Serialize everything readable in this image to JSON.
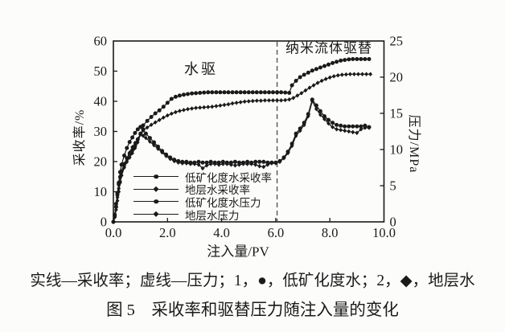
{
  "figure": {
    "note": "实线—采收率；虚线—压力；1，●，低矿化度水；2，◆，地层水",
    "title": "图 5　采收率和驱替压力随注入量的变化"
  },
  "chart_data": {
    "type": "line",
    "xlabel": "注入量/PV",
    "ylabel_left": "采收率/%",
    "ylabel_right": "压力/MPa",
    "xlim": [
      0,
      10
    ],
    "ylim_left": [
      0,
      60
    ],
    "ylim_right": [
      0,
      25
    ],
    "x_ticks": [
      "0.0",
      "2.0",
      "4.0",
      "6.0",
      "8.0",
      "10.0"
    ],
    "x_tick_values": [
      0,
      2,
      4,
      6,
      8,
      10
    ],
    "y_ticks_left": [
      0,
      10,
      20,
      30,
      40,
      50,
      60
    ],
    "y_ticks_right": [
      0,
      5,
      10,
      15,
      20,
      25
    ],
    "grid": false,
    "divider_x": 6.05,
    "colors": {
      "ink": "#1a1a1a",
      "divider": "#4a4a4a",
      "background": "#fcfcfb"
    },
    "annotations": [
      {
        "text": "水驱",
        "region": "water-flooding-stage"
      },
      {
        "text": "纳米流体驱替",
        "region": "nanofluid-displacement-stage"
      }
    ],
    "legend": [
      {
        "label": "低矿化度水采收率",
        "marker": "circle"
      },
      {
        "label": "地层水采收率",
        "marker": "diamond"
      },
      {
        "label": "低矿化度水压力",
        "marker": "circle"
      },
      {
        "label": "地层水压力",
        "marker": "diamond"
      }
    ],
    "series": [
      {
        "name": "低矿化度水采收率",
        "axis": "left",
        "unit": "%",
        "marker": "circle",
        "points": [
          [
            0,
            0
          ],
          [
            0.05,
            2
          ],
          [
            0.1,
            5
          ],
          [
            0.15,
            9
          ],
          [
            0.2,
            13
          ],
          [
            0.25,
            16.5
          ],
          [
            0.3,
            19
          ],
          [
            0.4,
            22
          ],
          [
            0.5,
            24.5
          ],
          [
            0.6,
            26.5
          ],
          [
            0.7,
            28
          ],
          [
            0.8,
            29.5
          ],
          [
            0.9,
            30.7
          ],
          [
            1.0,
            31.5
          ],
          [
            1.1,
            32
          ],
          [
            1.25,
            33.5
          ],
          [
            1.4,
            34.8
          ],
          [
            1.55,
            36
          ],
          [
            1.7,
            37
          ],
          [
            1.85,
            38.2
          ],
          [
            2.0,
            39.5
          ],
          [
            2.15,
            40.8
          ],
          [
            2.3,
            41.5
          ],
          [
            2.45,
            41.9
          ],
          [
            2.6,
            42.2
          ],
          [
            2.75,
            42.4
          ],
          [
            2.9,
            42.6
          ],
          [
            3.05,
            42.7
          ],
          [
            3.2,
            42.8
          ],
          [
            3.35,
            42.9
          ],
          [
            3.5,
            43
          ],
          [
            3.65,
            43
          ],
          [
            3.8,
            43
          ],
          [
            3.95,
            43
          ],
          [
            4.1,
            43
          ],
          [
            4.25,
            43
          ],
          [
            4.4,
            43
          ],
          [
            4.55,
            43
          ],
          [
            4.7,
            43
          ],
          [
            4.85,
            43
          ],
          [
            5.0,
            43
          ],
          [
            5.15,
            43
          ],
          [
            5.3,
            43
          ],
          [
            5.45,
            43
          ],
          [
            5.6,
            43
          ],
          [
            5.75,
            43
          ],
          [
            5.9,
            43
          ],
          [
            6.05,
            43
          ],
          [
            6.2,
            43
          ],
          [
            6.35,
            42.9
          ],
          [
            6.5,
            42.8
          ],
          [
            6.6,
            45.3
          ],
          [
            6.75,
            46.8
          ],
          [
            6.9,
            48
          ],
          [
            7.05,
            48.8
          ],
          [
            7.2,
            49.5
          ],
          [
            7.35,
            50.2
          ],
          [
            7.5,
            50.7
          ],
          [
            7.65,
            51.2
          ],
          [
            7.8,
            51.7
          ],
          [
            7.95,
            52.2
          ],
          [
            8.1,
            52.7
          ],
          [
            8.25,
            53.1
          ],
          [
            8.4,
            53.5
          ],
          [
            8.55,
            53.7
          ],
          [
            8.7,
            53.9
          ],
          [
            8.85,
            54
          ],
          [
            9.0,
            54
          ],
          [
            9.15,
            54
          ],
          [
            9.3,
            54
          ],
          [
            9.45,
            54
          ]
        ]
      },
      {
        "name": "地层水采收率",
        "axis": "left",
        "unit": "%",
        "marker": "diamond",
        "points": [
          [
            0,
            0
          ],
          [
            0.05,
            1.5
          ],
          [
            0.1,
            4
          ],
          [
            0.15,
            7
          ],
          [
            0.2,
            10
          ],
          [
            0.25,
            13
          ],
          [
            0.3,
            15.5
          ],
          [
            0.4,
            18.5
          ],
          [
            0.5,
            21
          ],
          [
            0.6,
            23
          ],
          [
            0.7,
            24.8
          ],
          [
            0.8,
            26.2
          ],
          [
            0.9,
            27.5
          ],
          [
            1.0,
            29
          ],
          [
            1.1,
            30.3
          ],
          [
            1.25,
            31.3
          ],
          [
            1.4,
            32.2
          ],
          [
            1.55,
            33
          ],
          [
            1.7,
            33.8
          ],
          [
            1.85,
            34.6
          ],
          [
            2.0,
            35.3
          ],
          [
            2.15,
            35.9
          ],
          [
            2.3,
            36.4
          ],
          [
            2.45,
            36.8
          ],
          [
            2.6,
            37.1
          ],
          [
            2.75,
            37.4
          ],
          [
            2.9,
            37.6
          ],
          [
            3.05,
            37.8
          ],
          [
            3.2,
            37.9
          ],
          [
            3.35,
            38
          ],
          [
            3.5,
            38.1
          ],
          [
            3.65,
            38.2
          ],
          [
            3.8,
            38.4
          ],
          [
            3.95,
            38.6
          ],
          [
            4.1,
            38.8
          ],
          [
            4.25,
            39
          ],
          [
            4.4,
            39.3
          ],
          [
            4.55,
            39.5
          ],
          [
            4.7,
            39.7
          ],
          [
            4.85,
            39.9
          ],
          [
            5.0,
            40
          ],
          [
            5.15,
            40.1
          ],
          [
            5.3,
            40.2
          ],
          [
            5.45,
            40.2
          ],
          [
            5.6,
            40.3
          ],
          [
            5.75,
            40.3
          ],
          [
            5.9,
            40.3
          ],
          [
            6.05,
            40.3
          ],
          [
            6.2,
            40.3
          ],
          [
            6.35,
            40.4
          ],
          [
            6.5,
            40.6
          ],
          [
            6.65,
            41.1
          ],
          [
            6.8,
            41.9
          ],
          [
            6.95,
            42.7
          ],
          [
            7.1,
            43.6
          ],
          [
            7.25,
            44.5
          ],
          [
            7.4,
            45.3
          ],
          [
            7.55,
            46.1
          ],
          [
            7.7,
            46.8
          ],
          [
            7.85,
            47.4
          ],
          [
            8.0,
            47.9
          ],
          [
            8.15,
            48.3
          ],
          [
            8.3,
            48.6
          ],
          [
            8.45,
            48.8
          ],
          [
            8.6,
            48.9
          ],
          [
            8.75,
            49
          ],
          [
            8.9,
            49
          ],
          [
            9.05,
            49
          ],
          [
            9.2,
            49
          ],
          [
            9.35,
            49
          ],
          [
            9.5,
            49
          ]
        ]
      },
      {
        "name": "低矿化度水压力",
        "axis": "right",
        "unit": "MPa",
        "marker": "circle",
        "points": [
          [
            0,
            0
          ],
          [
            0.05,
            1
          ],
          [
            0.1,
            2.5
          ],
          [
            0.15,
            4
          ],
          [
            0.2,
            5.2
          ],
          [
            0.25,
            6.2
          ],
          [
            0.3,
            7
          ],
          [
            0.4,
            8
          ],
          [
            0.5,
            8.8
          ],
          [
            0.6,
            9.4
          ],
          [
            0.7,
            9.9
          ],
          [
            0.8,
            10.5
          ],
          [
            0.9,
            11.4
          ],
          [
            1.0,
            12.2
          ],
          [
            1.1,
            12.8
          ],
          [
            1.2,
            12.2
          ],
          [
            1.35,
            11.6
          ],
          [
            1.5,
            11
          ],
          [
            1.65,
            10.4
          ],
          [
            1.8,
            9.8
          ],
          [
            1.95,
            9.3
          ],
          [
            2.1,
            8.9
          ],
          [
            2.25,
            8.6
          ],
          [
            2.4,
            8.4
          ],
          [
            2.55,
            8.3
          ],
          [
            2.7,
            8.3
          ],
          [
            2.85,
            8.2
          ],
          [
            3.0,
            8.2
          ],
          [
            3.15,
            8.3
          ],
          [
            3.3,
            8.2
          ],
          [
            3.45,
            8.2
          ],
          [
            3.6,
            8.3
          ],
          [
            3.75,
            8.2
          ],
          [
            3.9,
            8.2
          ],
          [
            4.05,
            8.3
          ],
          [
            4.2,
            8.2
          ],
          [
            4.35,
            8.2
          ],
          [
            4.5,
            8.3
          ],
          [
            4.65,
            8.2
          ],
          [
            4.8,
            8.2
          ],
          [
            4.95,
            8.3
          ],
          [
            5.1,
            8.2
          ],
          [
            5.25,
            8.3
          ],
          [
            5.4,
            8.3
          ],
          [
            5.55,
            8.3
          ],
          [
            5.7,
            8.2
          ],
          [
            5.85,
            8.2
          ],
          [
            6.0,
            8.2
          ],
          [
            6.15,
            8.4
          ],
          [
            6.3,
            8.9
          ],
          [
            6.45,
            9.7
          ],
          [
            6.6,
            10.8
          ],
          [
            6.75,
            12.2
          ],
          [
            6.9,
            12.9
          ],
          [
            7.05,
            13.7
          ],
          [
            7.2,
            14.9
          ],
          [
            7.35,
            16.9
          ],
          [
            7.5,
            16.1
          ],
          [
            7.65,
            15.3
          ],
          [
            7.8,
            14.6
          ],
          [
            7.95,
            14.1
          ],
          [
            8.1,
            13.7
          ],
          [
            8.25,
            13.4
          ],
          [
            8.4,
            13.3
          ],
          [
            8.55,
            13.2
          ],
          [
            8.7,
            13.2
          ],
          [
            8.85,
            13.2
          ],
          [
            9.0,
            13.2
          ],
          [
            9.15,
            13.2
          ],
          [
            9.3,
            13.3
          ],
          [
            9.45,
            13.1
          ]
        ]
      },
      {
        "name": "地层水压力",
        "axis": "right",
        "unit": "MPa",
        "marker": "diamond",
        "points": [
          [
            0,
            0
          ],
          [
            0.05,
            0.8
          ],
          [
            0.1,
            2
          ],
          [
            0.15,
            3.4
          ],
          [
            0.2,
            4.6
          ],
          [
            0.25,
            5.6
          ],
          [
            0.3,
            6.4
          ],
          [
            0.4,
            7.5
          ],
          [
            0.5,
            8.3
          ],
          [
            0.6,
            8.9
          ],
          [
            0.7,
            9.5
          ],
          [
            0.8,
            10.2
          ],
          [
            0.9,
            11
          ],
          [
            1.0,
            12.1
          ],
          [
            1.1,
            11.9
          ],
          [
            1.2,
            11.6
          ],
          [
            1.35,
            11.1
          ],
          [
            1.5,
            10.6
          ],
          [
            1.65,
            10.1
          ],
          [
            1.8,
            9.6
          ],
          [
            1.95,
            9.1
          ],
          [
            2.1,
            8.7
          ],
          [
            2.25,
            8.4
          ],
          [
            2.4,
            8.2
          ],
          [
            2.55,
            8.1
          ],
          [
            2.7,
            8.1
          ],
          [
            2.85,
            8
          ],
          [
            3.0,
            8
          ],
          [
            3.15,
            7.9
          ],
          [
            3.3,
            7.4
          ],
          [
            3.45,
            7.8
          ],
          [
            3.6,
            8
          ],
          [
            3.75,
            8
          ],
          [
            3.9,
            7.9
          ],
          [
            4.05,
            8
          ],
          [
            4.2,
            8
          ],
          [
            4.35,
            7.9
          ],
          [
            4.5,
            7.8
          ],
          [
            4.65,
            7.9
          ],
          [
            4.8,
            8
          ],
          [
            4.95,
            8
          ],
          [
            5.1,
            8
          ],
          [
            5.25,
            7.9
          ],
          [
            5.4,
            7.7
          ],
          [
            5.55,
            7.6
          ],
          [
            5.7,
            7.9
          ],
          [
            5.85,
            8.1
          ],
          [
            6.0,
            8.1
          ],
          [
            6.15,
            8.3
          ],
          [
            6.3,
            8.8
          ],
          [
            6.45,
            9.5
          ],
          [
            6.6,
            10.5
          ],
          [
            6.75,
            11.9
          ],
          [
            6.9,
            12.6
          ],
          [
            7.05,
            13.4
          ],
          [
            7.2,
            14.6
          ],
          [
            7.35,
            16.7
          ],
          [
            7.5,
            15.6
          ],
          [
            7.65,
            14.8
          ],
          [
            7.8,
            14.2
          ],
          [
            7.95,
            13.6
          ],
          [
            8.1,
            13.1
          ],
          [
            8.25,
            12.8
          ],
          [
            8.4,
            12.7
          ],
          [
            8.55,
            12.6
          ],
          [
            8.7,
            12.5
          ],
          [
            8.85,
            12.4
          ],
          [
            9.0,
            12.3
          ],
          [
            9.15,
            12.8
          ],
          [
            9.3,
            13
          ],
          [
            9.45,
            13
          ]
        ]
      }
    ]
  }
}
